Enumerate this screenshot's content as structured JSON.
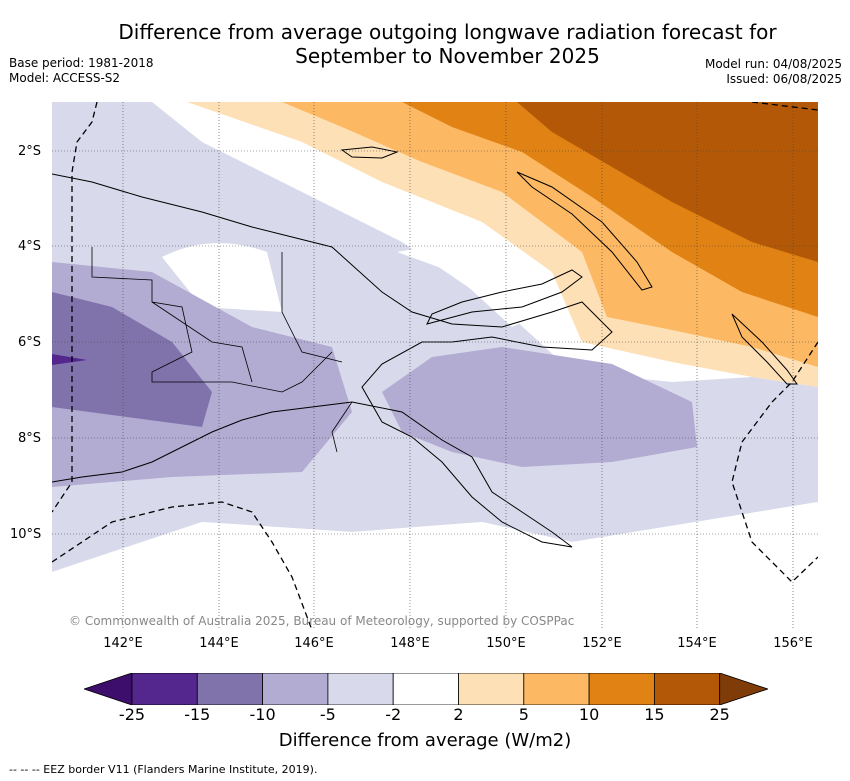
{
  "title": "Difference from average outgoing longwave radiation forecast for September to November 2025",
  "meta_left": {
    "base_period": "Base period: 1981-2018",
    "model": "Model: ACCESS-S2"
  },
  "meta_right": {
    "model_run": "Model run: 04/08/2025",
    "issued": "Issued: 06/08/2025"
  },
  "map": {
    "lat_labels": [
      "2°S",
      "4°S",
      "6°S",
      "8°S",
      "10°S"
    ],
    "lon_labels": [
      "142°E",
      "144°E",
      "146°E",
      "148°E",
      "150°E",
      "152°E",
      "154°E",
      "156°E"
    ],
    "copyright": "© Commonwealth of Australia 2025, Bureau of Meteorology, supported by COSPPac"
  },
  "colorbar": {
    "ticks": [
      "-25",
      "-15",
      "-10",
      "-5",
      "-2",
      "2",
      "5",
      "10",
      "15",
      "25"
    ],
    "colors": [
      "#3d0e6b",
      "#54278f",
      "#8073ac",
      "#b2abd2",
      "#d8daeb",
      "#ffffff",
      "#fee0b6",
      "#fdb863",
      "#e08214",
      "#b35806",
      "#7f3b08"
    ],
    "label": "Difference from average (W/m2)"
  },
  "footnote": "-- -- -- EEZ border V11 (Flanders Marine Institute, 2019)."
}
